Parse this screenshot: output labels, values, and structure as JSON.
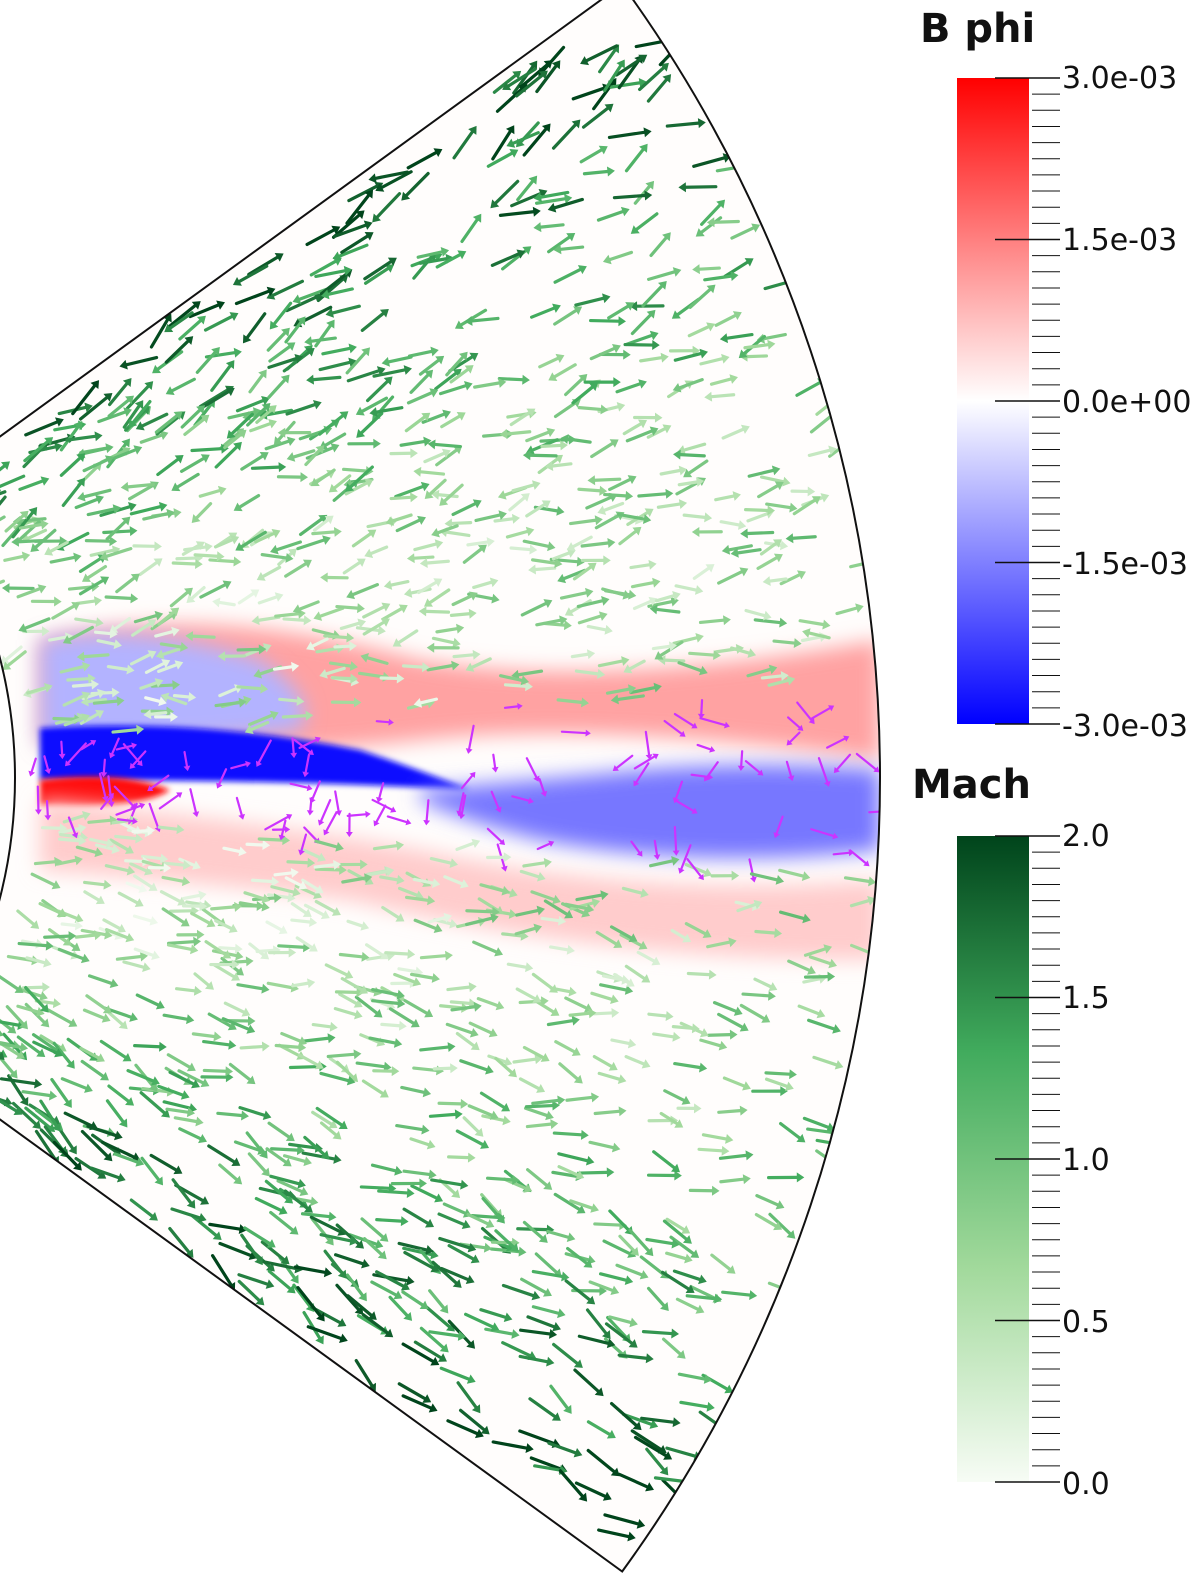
{
  "chart_data": {
    "type": "heatmap",
    "description_fields": {
      "domain_shape": "wedge",
      "vector_overlay": "arrows"
    },
    "scalar_field": {
      "name": "B phi",
      "range": [
        -0.003,
        0.003
      ],
      "colormap": [
        "#0000ff",
        "#ffffff",
        "#ff0000"
      ],
      "ticks": [
        "3.0e-03",
        "1.5e-03",
        "0.0e+00",
        "-1.5e-03",
        "-3.0e-03"
      ]
    },
    "vector_color_field": {
      "name": "Mach",
      "range": [
        0.0,
        2.0
      ],
      "colormap": [
        "#f7fcf5",
        "#a1d99b",
        "#41ab5d",
        "#00441b"
      ],
      "ticks": [
        "2.0",
        "1.5",
        "1.0",
        "0.5",
        "0.0"
      ]
    },
    "disk_vector_color": "#cc33ff",
    "grid": false
  }
}
